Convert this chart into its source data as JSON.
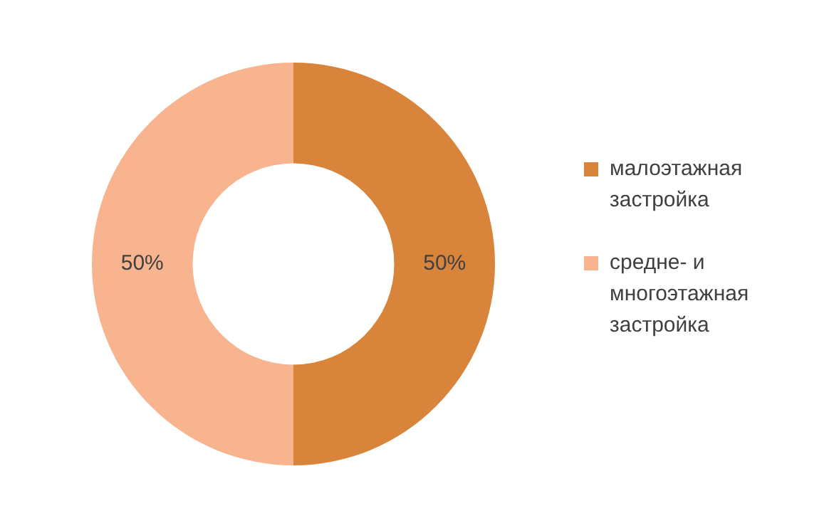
{
  "chart_data": {
    "type": "donut",
    "categories": [
      "малоэтажная застройка",
      "средне- и многоэтажная застройка"
    ],
    "values": [
      50,
      50
    ],
    "colors": [
      "#d9843b",
      "#f7b48f"
    ],
    "value_labels": [
      "50%",
      "50%"
    ],
    "legend": "right"
  }
}
